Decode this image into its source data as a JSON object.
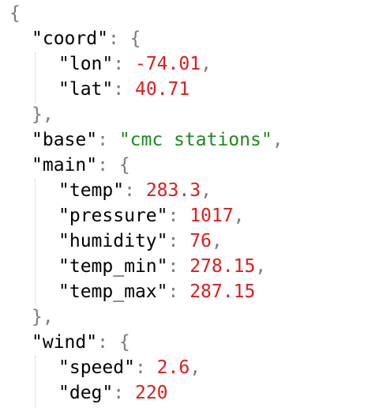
{
  "json_viewer": {
    "open_brace": "{",
    "close_brace": "}",
    "open_inner": "{",
    "close_inner": "},",
    "quote": "\"",
    "colon": ": ",
    "comma": ",",
    "entries": {
      "coord": {
        "key": "coord",
        "lon": {
          "key": "lon",
          "value": "-74.01"
        },
        "lat": {
          "key": "lat",
          "value": "40.71"
        }
      },
      "base": {
        "key": "base",
        "value": "\"cmc stations\""
      },
      "main": {
        "key": "main",
        "temp": {
          "key": "temp",
          "value": "283.3"
        },
        "pressure": {
          "key": "pressure",
          "value": "1017"
        },
        "humidity": {
          "key": "humidity",
          "value": "76"
        },
        "temp_min": {
          "key": "temp_min",
          "value": "278.15"
        },
        "temp_max": {
          "key": "temp_max",
          "value": "287.15"
        }
      },
      "wind": {
        "key": "wind",
        "speed": {
          "key": "speed",
          "value": "2.6"
        },
        "deg": {
          "key": "deg",
          "value": "220"
        }
      }
    }
  }
}
